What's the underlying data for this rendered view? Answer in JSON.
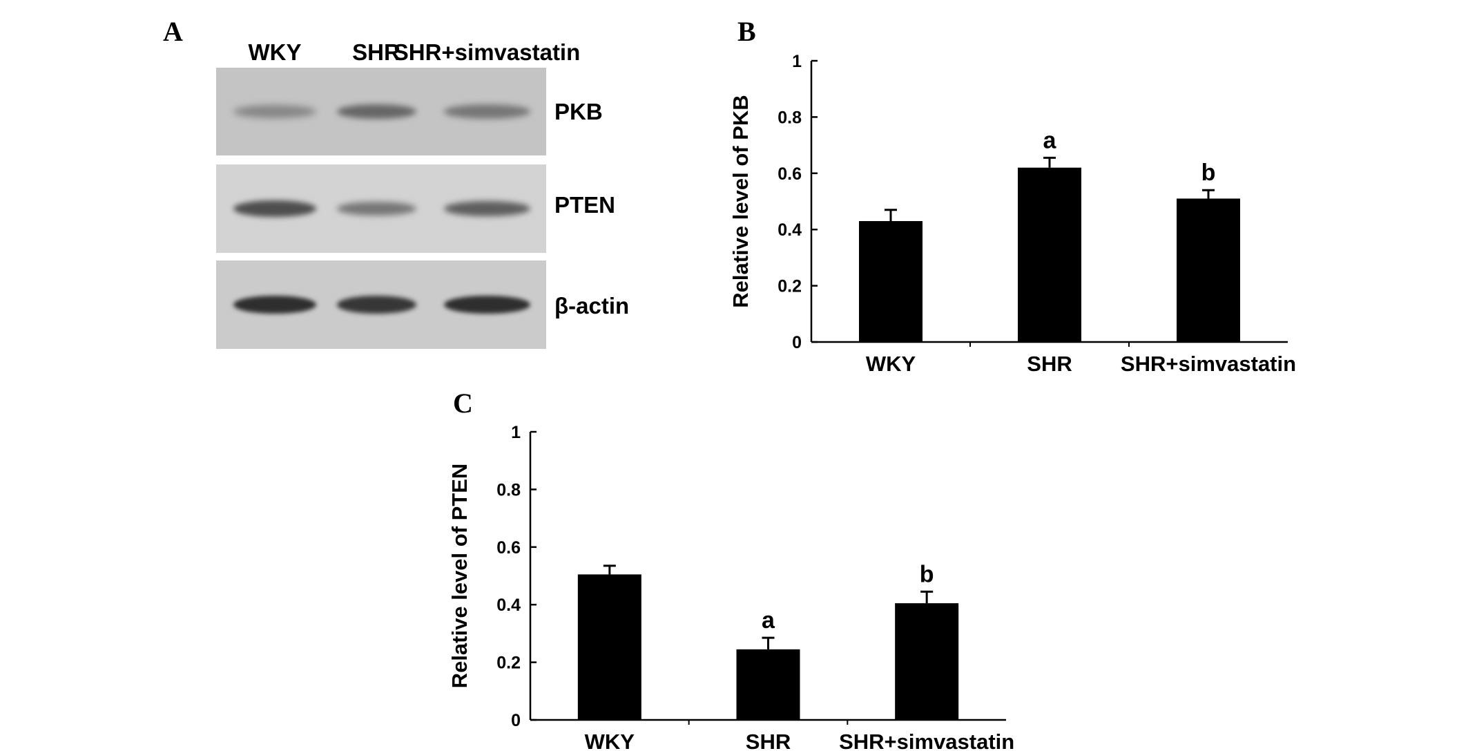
{
  "panels": {
    "a": {
      "letter": "A",
      "lanes": [
        "WKY",
        "SHR",
        "SHR+simvastatin"
      ],
      "blots": [
        {
          "label": "PKB",
          "band_intensity": [
            0.35,
            0.55,
            0.45
          ],
          "background": "#c4c4c4"
        },
        {
          "label": "PTEN",
          "band_intensity": [
            0.7,
            0.45,
            0.6
          ],
          "background": "#d3d3d3"
        },
        {
          "label": "β-actin",
          "band_intensity": [
            0.9,
            0.85,
            0.9
          ],
          "background": "#cbcbcb"
        }
      ]
    },
    "b": {
      "letter": "B"
    },
    "c": {
      "letter": "C"
    }
  },
  "chart_data": [
    {
      "type": "bar",
      "panel": "B",
      "categories": [
        "WKY",
        "SHR",
        "SHR+simvastatin"
      ],
      "values": [
        0.43,
        0.62,
        0.51
      ],
      "errors": [
        0.04,
        0.035,
        0.03
      ],
      "annotations": [
        "",
        "a",
        "b"
      ],
      "ylabel": "Relative level of PKB",
      "ylim": [
        0,
        1
      ],
      "yticks": [
        "0",
        "0.2",
        "0.4",
        "0.6",
        "0.8",
        "1"
      ],
      "bar_color": "#000000"
    },
    {
      "type": "bar",
      "panel": "C",
      "categories": [
        "WKY",
        "SHR",
        "SHR+simvastatin"
      ],
      "values": [
        0.505,
        0.245,
        0.405
      ],
      "errors": [
        0.03,
        0.04,
        0.04
      ],
      "annotations": [
        "",
        "a",
        "b"
      ],
      "ylabel": "Relative level of PTEN",
      "ylim": [
        0,
        1
      ],
      "yticks": [
        "0",
        "0.2",
        "0.4",
        "0.6",
        "0.8",
        "1"
      ],
      "bar_color": "#000000"
    }
  ]
}
